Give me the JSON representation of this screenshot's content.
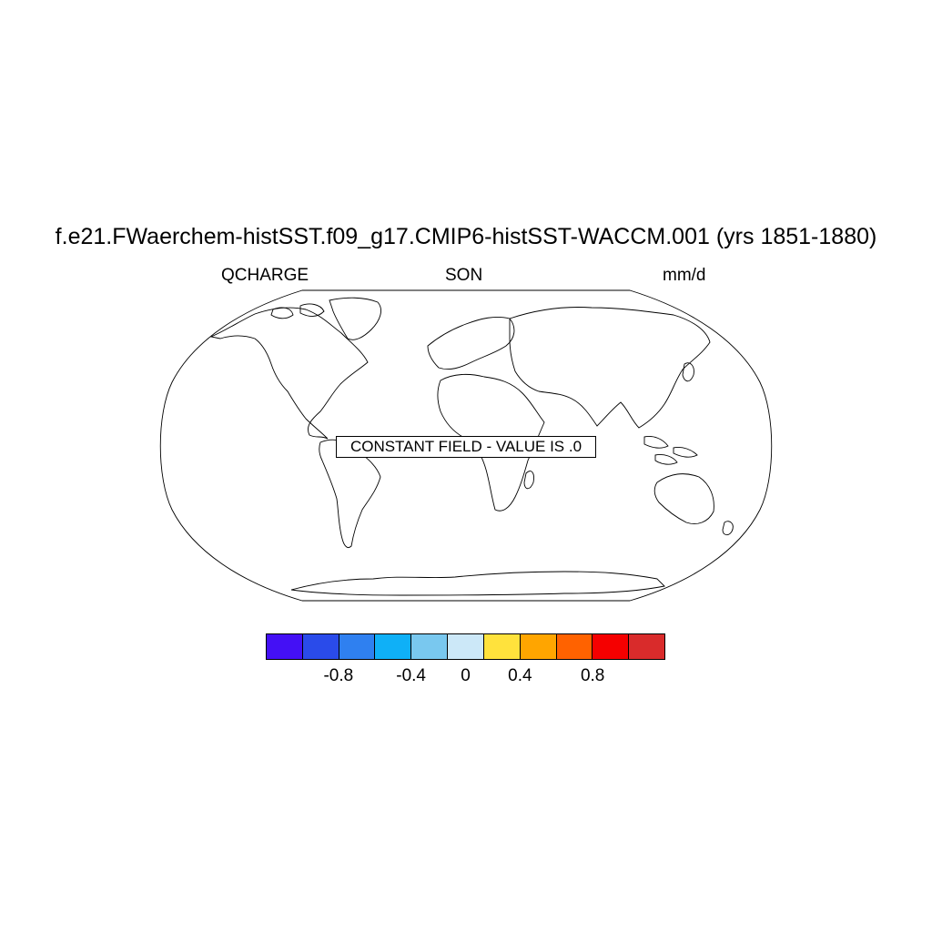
{
  "figure": {
    "title": "f.e21.FWaerchem-histSST.f09_g17.CMIP6-histSST-WACCM.001 (yrs 1851-1880)",
    "variable": "QCHARGE",
    "season": "SON",
    "units": "mm/d"
  },
  "map": {
    "projection": "Robinson",
    "coastlines": true,
    "constant_field_label": "CONSTANT FIELD - VALUE IS .0"
  },
  "colorbar": {
    "colors": [
      "#4410f5",
      "#2a4bea",
      "#2f80f0",
      "#0fb0f7",
      "#79c8ef",
      "#cce8f8",
      "#ffe23c",
      "#ffa500",
      "#ff6200",
      "#f50000",
      "#d92b2b"
    ],
    "labels": [
      "-0.8",
      "-0.4",
      "0",
      "0.4",
      "0.8"
    ]
  }
}
